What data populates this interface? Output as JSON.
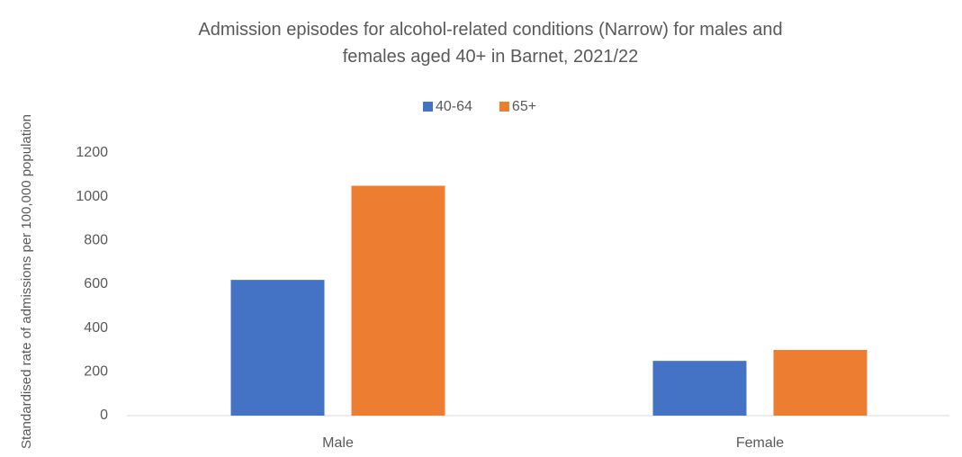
{
  "chart_data": {
    "type": "bar",
    "title": "Admission episodes for alcohol-related conditions (Narrow) for males and females aged 40+ in Barnet, 2021/22",
    "y_label": "Standardised rate of admissions per 100,000 population",
    "categories": [
      "Male",
      "Female"
    ],
    "series": [
      {
        "name": "40-64",
        "color": "#4472c4",
        "values": [
          620,
          250
        ]
      },
      {
        "name": "65+",
        "color": "#ed7d31",
        "values": [
          1050,
          300
        ]
      }
    ],
    "ylim": [
      0,
      1200
    ],
    "yticks": [
      0,
      200,
      400,
      600,
      800,
      1000,
      1200
    ],
    "grid": false,
    "legend": "top"
  }
}
